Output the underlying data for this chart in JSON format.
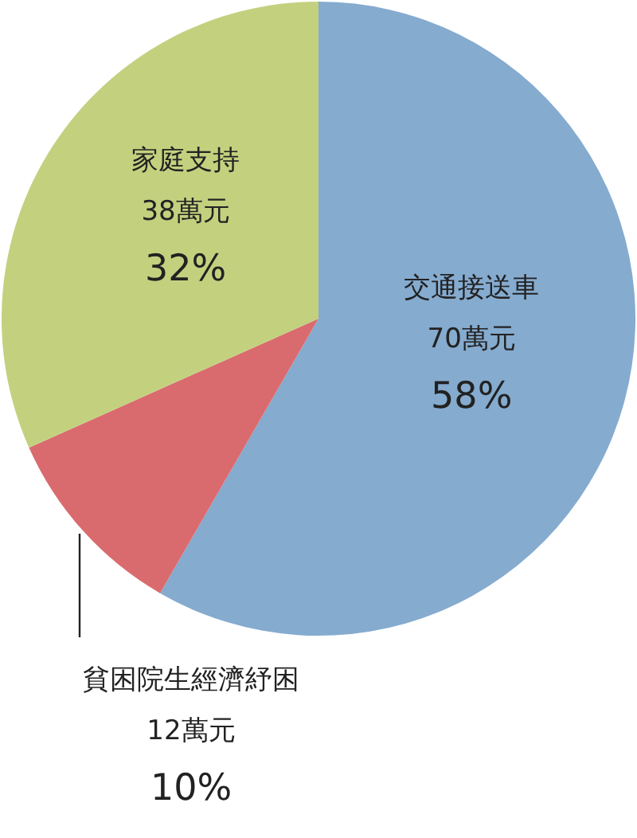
{
  "chart_data": {
    "type": "pie",
    "categories": [
      "交通接送車",
      "貧困院生經濟紓困",
      "家庭支持"
    ],
    "values": [
      70,
      12,
      38
    ],
    "colors": [
      "#85abcf",
      "#d96b6f",
      "#c3d17f"
    ],
    "value_labels": [
      "70萬元\n58%",
      "12萬元\n10%",
      "38萬元\n32%"
    ]
  }
}
